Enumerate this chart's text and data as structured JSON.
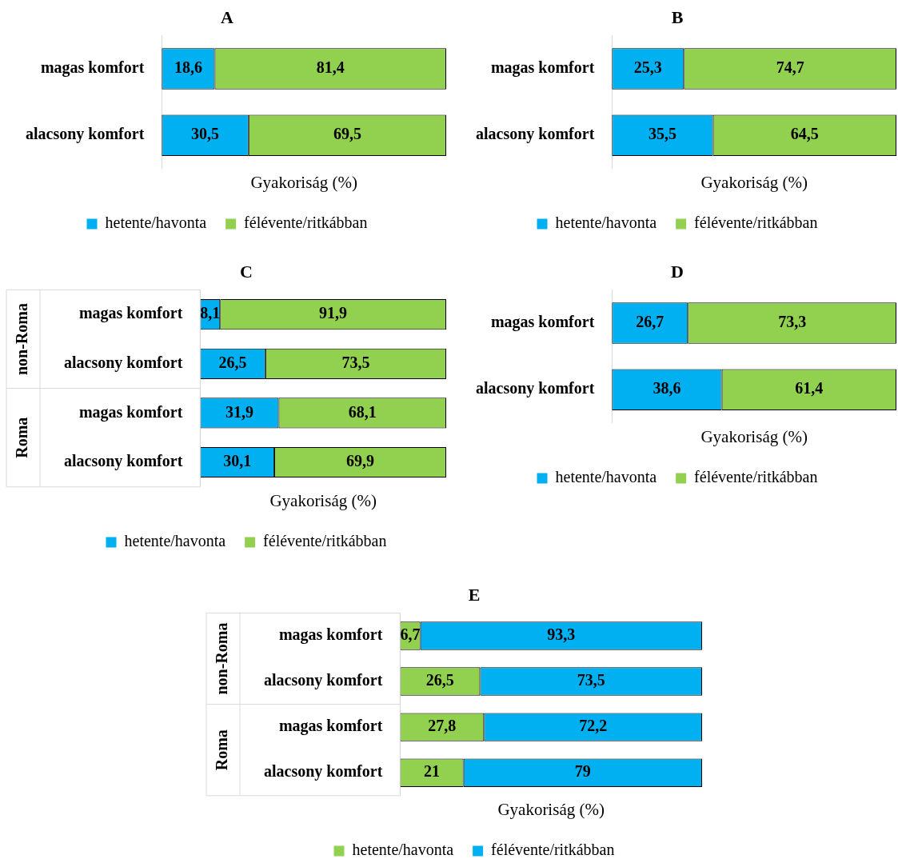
{
  "chart_data": [
    {
      "type": "bar",
      "orientation": "horizontal",
      "stacked": true,
      "title": "A",
      "xlabel": "Gyakoriság (%)",
      "categories": [
        "magas komfort",
        "alacsony komfort"
      ],
      "series": [
        {
          "name": "hetente/havonta",
          "color": "#00b0f0",
          "values": [
            18.6,
            30.5
          ],
          "value_labels": [
            "18,6",
            "30,5"
          ]
        },
        {
          "name": "félévente/ritkábban",
          "color": "#92d050",
          "values": [
            81.4,
            69.5
          ],
          "value_labels": [
            "81,4",
            "69,5"
          ]
        }
      ],
      "legend": "bottom",
      "tick_labels": "y",
      "grid": false
    },
    {
      "type": "bar",
      "orientation": "horizontal",
      "stacked": true,
      "title": "B",
      "xlabel": "Gyakoriság (%)",
      "categories": [
        "magas komfort",
        "alacsony komfort"
      ],
      "series": [
        {
          "name": "hetente/havonta",
          "color": "#00b0f0",
          "values": [
            25.3,
            35.5
          ],
          "value_labels": [
            "25,3",
            "35,5"
          ]
        },
        {
          "name": "félévente/ritkábban",
          "color": "#92d050",
          "values": [
            74.7,
            64.5
          ],
          "value_labels": [
            "74,7",
            "64,5"
          ]
        }
      ],
      "legend": "bottom",
      "tick_labels": "y",
      "grid": false
    },
    {
      "type": "bar",
      "orientation": "horizontal",
      "stacked": true,
      "title": "C",
      "xlabel": "Gyakoriság (%)",
      "categories": [
        "magas komfort",
        "alacsony komfort",
        "magas komfort",
        "alacsony komfort"
      ],
      "annotations": [
        "non-Roma",
        "Roma"
      ],
      "series": [
        {
          "name": "hetente/havonta",
          "color": "#00b0f0",
          "values": [
            8.1,
            26.5,
            31.9,
            30.1
          ],
          "value_labels": [
            "8,1",
            "26,5",
            "31,9",
            "30,1"
          ]
        },
        {
          "name": "félévente/ritkábban",
          "color": "#92d050",
          "values": [
            91.9,
            73.5,
            68.1,
            69.9
          ],
          "value_labels": [
            "91,9",
            "73,5",
            "68,1",
            "69,9"
          ]
        }
      ],
      "legend": "bottom",
      "tick_labels": "y",
      "grid": false
    },
    {
      "type": "bar",
      "orientation": "horizontal",
      "stacked": true,
      "title": "D",
      "xlabel": "Gyakoriság (%)",
      "categories": [
        "magas komfort",
        "alacsony komfort"
      ],
      "series": [
        {
          "name": "hetente/havonta",
          "color": "#00b0f0",
          "values": [
            26.7,
            38.6
          ],
          "value_labels": [
            "26,7",
            "38,6"
          ]
        },
        {
          "name": "félévente/ritkábban",
          "color": "#92d050",
          "values": [
            73.3,
            61.4
          ],
          "value_labels": [
            "73,3",
            "61,4"
          ]
        }
      ],
      "legend": "bottom",
      "tick_labels": "y",
      "grid": false
    },
    {
      "type": "bar",
      "orientation": "horizontal",
      "stacked": true,
      "title": "E",
      "xlabel": "Gyakoriság (%)",
      "categories": [
        "magas komfort",
        "alacsony komfort",
        "magas komfort",
        "alacsony komfort"
      ],
      "annotations": [
        "non-Roma",
        "Roma"
      ],
      "series": [
        {
          "name": "hetente/havonta",
          "color": "#92d050",
          "values": [
            6.7,
            26.5,
            27.8,
            21
          ],
          "value_labels": [
            "6,7",
            "26,5",
            "27,8",
            "21"
          ]
        },
        {
          "name": "félévente/ritkábban",
          "color": "#00b0f0",
          "values": [
            93.3,
            73.5,
            72.2,
            79
          ],
          "value_labels": [
            "93,3",
            "73,5",
            "72,2",
            "79"
          ]
        }
      ],
      "legend": "bottom",
      "tick_labels": "y",
      "grid": false
    }
  ]
}
